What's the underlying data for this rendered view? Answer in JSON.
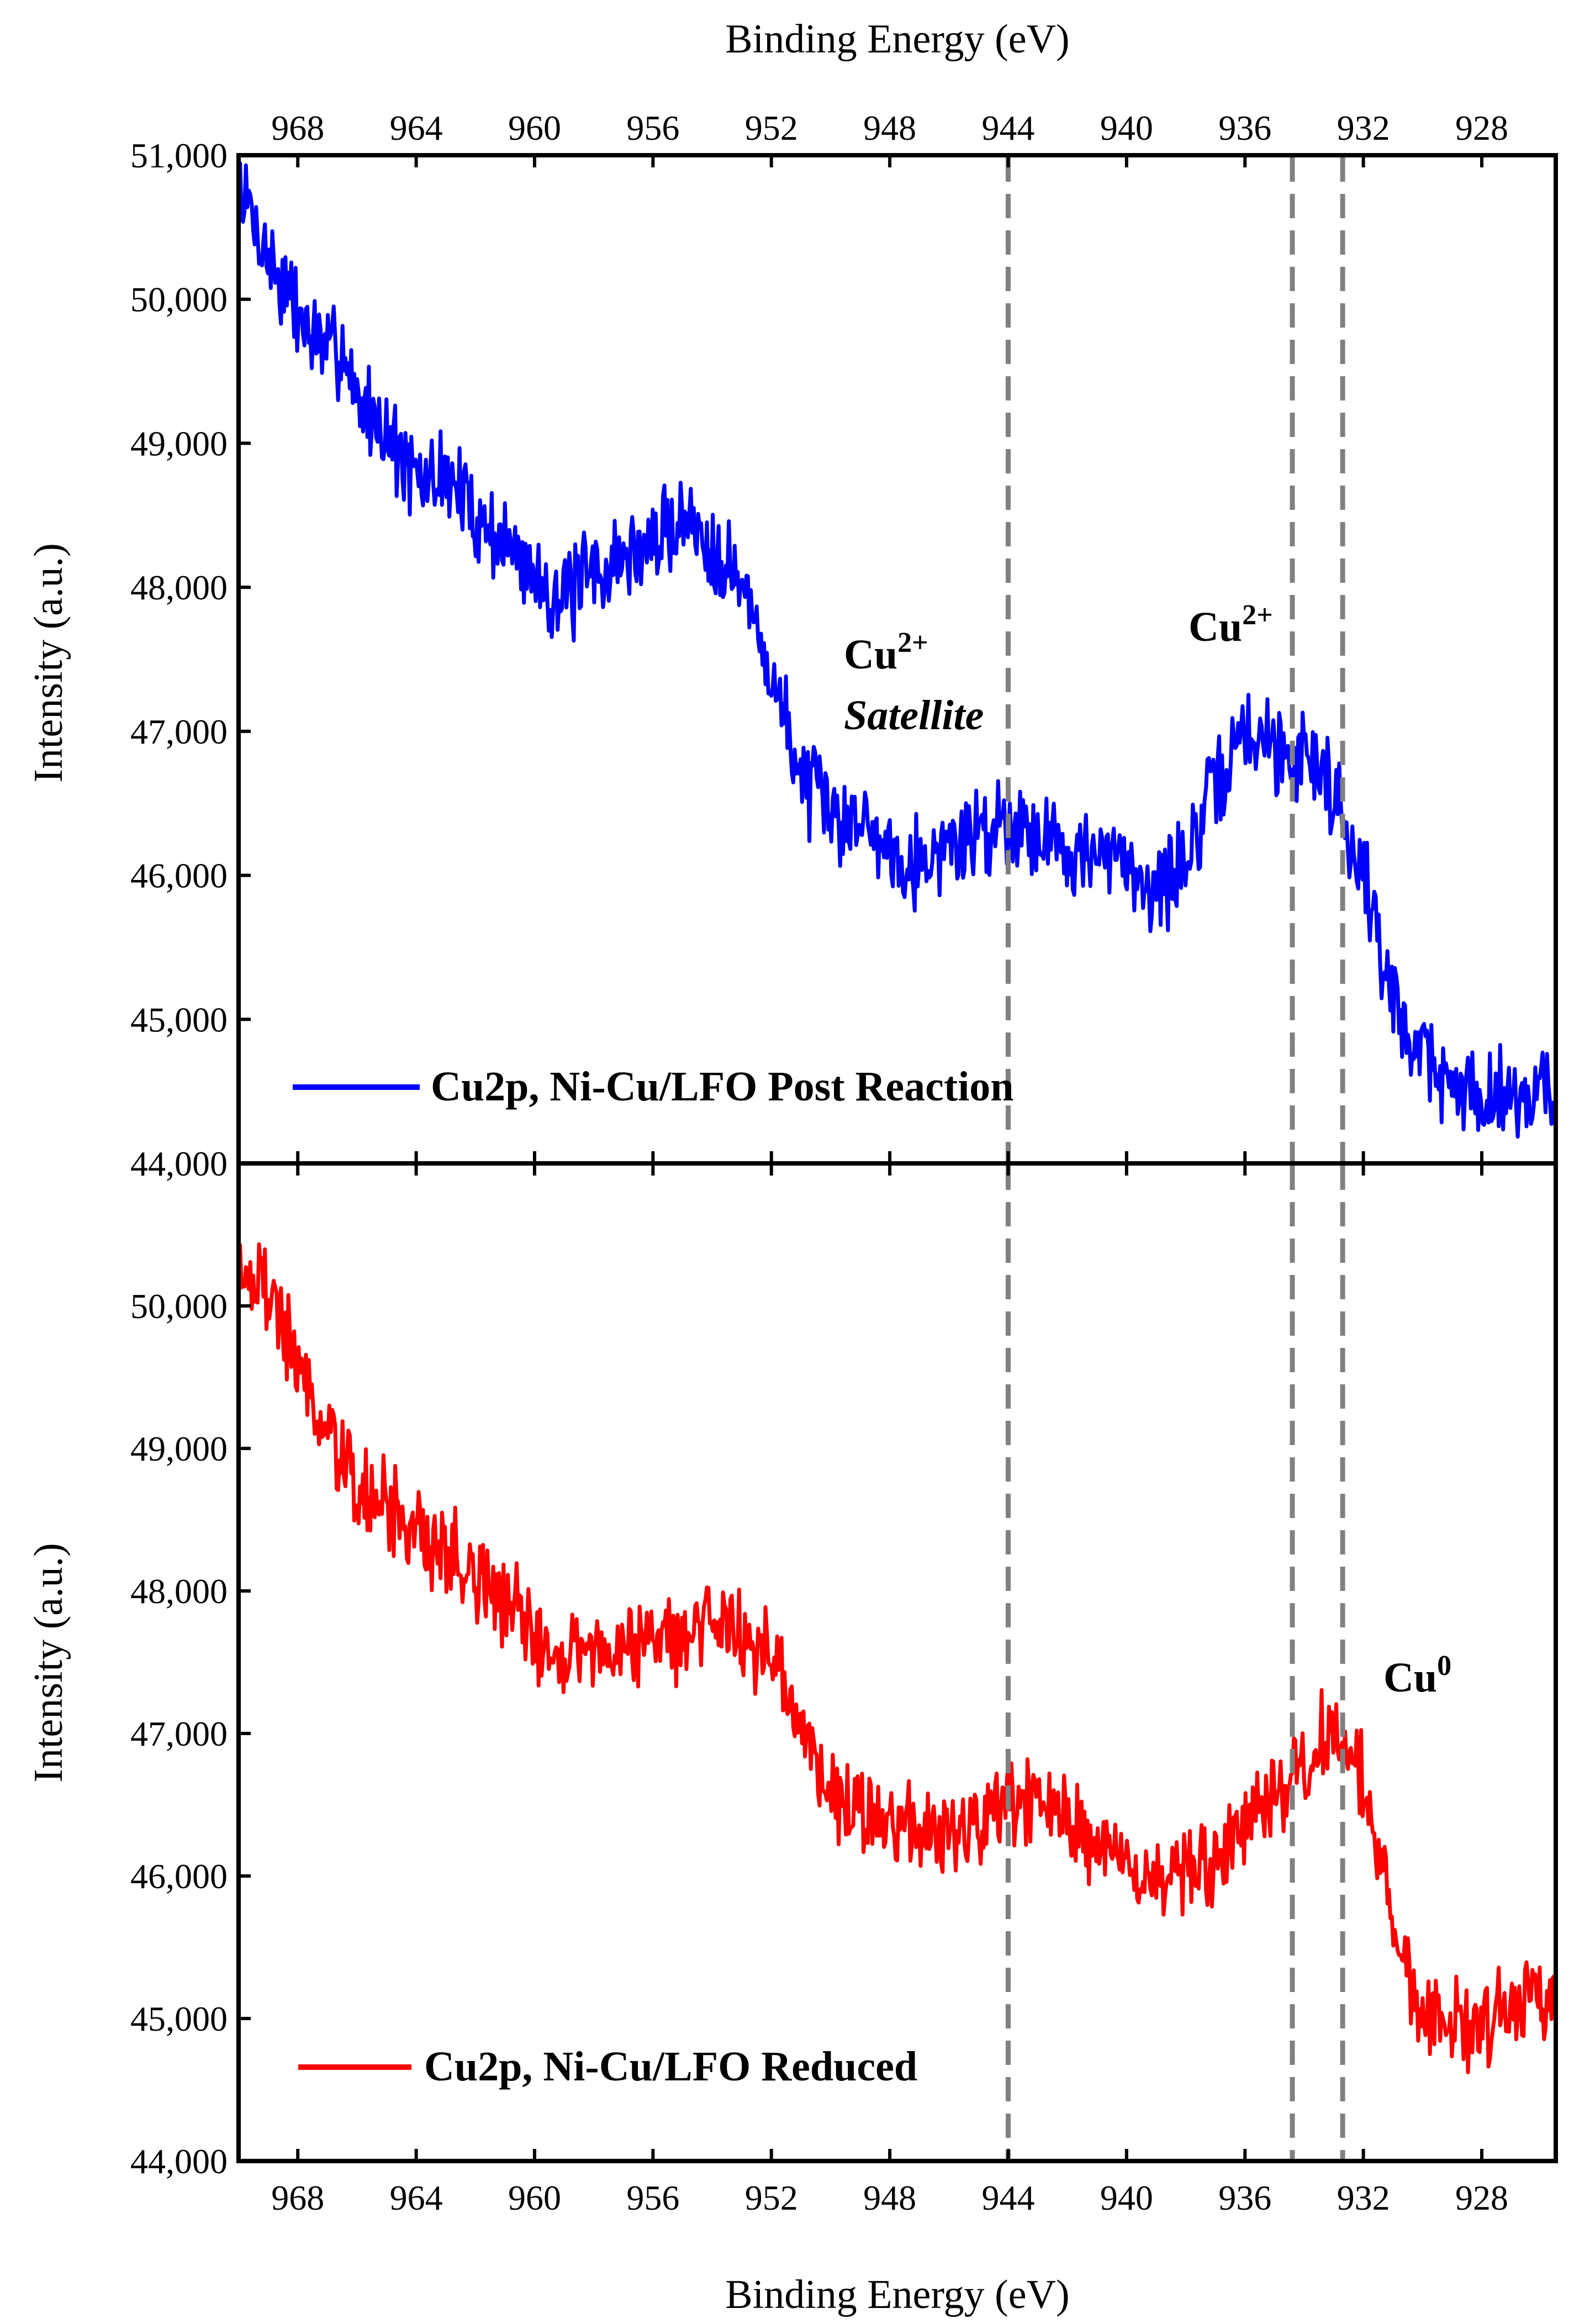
{
  "chart_data": [
    {
      "type": "line",
      "panel": "top",
      "xlabel": "Binding Energy (eV)",
      "ylabel": "Intensity (a.u.)",
      "xlim": [
        970.0,
        925.5
      ],
      "x_reversed": true,
      "ylim": [
        44000,
        51000
      ],
      "x_ticks": [
        968,
        964,
        960,
        956,
        952,
        948,
        944,
        940,
        936,
        932,
        928
      ],
      "x_tick_labels": [
        "968",
        "964",
        "960",
        "956",
        "952",
        "948",
        "944",
        "940",
        "936",
        "932",
        "928"
      ],
      "y_ticks": [
        44000,
        45000,
        46000,
        47000,
        48000,
        49000,
        50000,
        51000
      ],
      "y_tick_labels": [
        "44,000",
        "45,000",
        "46,000",
        "47,000",
        "48,000",
        "49,000",
        "50,000",
        "51,000"
      ],
      "legend_position": "bottom-left",
      "grid": false,
      "series": [
        {
          "name": "Cu2p, Ni-Cu/LFO Post Reaction",
          "color": "#0000ff",
          "x": [
            970.0,
            969.0,
            968.0,
            967.0,
            966.5,
            966.0,
            965.0,
            964.0,
            963.0,
            962.0,
            961.0,
            960.0,
            959.0,
            958.0,
            957.0,
            956.0,
            955.0,
            954.0,
            953.5,
            953.0,
            952.0,
            951.0,
            950.0,
            949.0,
            948.0,
            947.0,
            946.0,
            945.0,
            944.0,
            943.0,
            942.0,
            941.0,
            940.0,
            939.0,
            938.0,
            937.0,
            936.0,
            935.0,
            934.5,
            934.0,
            933.0,
            932.0,
            931.5,
            931.0,
            930.0,
            929.0,
            928.0,
            927.0,
            926.0,
            925.5
          ],
          "values": [
            50800,
            50300,
            49900,
            49600,
            49700,
            49300,
            49100,
            48700,
            48800,
            48500,
            48300,
            48100,
            47900,
            48100,
            48200,
            48300,
            48500,
            48300,
            48200,
            48000,
            47400,
            46700,
            46400,
            46400,
            46200,
            46100,
            46200,
            46300,
            46400,
            46300,
            46200,
            46100,
            46100,
            45900,
            46100,
            46600,
            47000,
            46900,
            46800,
            46900,
            46600,
            46000,
            45600,
            45100,
            44800,
            44500,
            44500,
            44500,
            44500,
            44500
          ]
        }
      ],
      "annotations": [
        {
          "text": "Cu",
          "sup": "2+",
          "line2": "Satellite"
        },
        {
          "text": "Cu",
          "sup": "2+"
        }
      ],
      "reference_lines_ev": [
        944.0,
        934.4,
        932.7
      ]
    },
    {
      "type": "line",
      "panel": "bottom",
      "xlabel": "Binding Energy (eV)",
      "ylabel": "Intensity (a.u.)",
      "xlim": [
        970.0,
        925.5
      ],
      "x_reversed": true,
      "ylim": [
        44000,
        51000
      ],
      "x_ticks": [
        968,
        964,
        960,
        956,
        952,
        948,
        944,
        940,
        936,
        932,
        928
      ],
      "x_tick_labels": [
        "968",
        "964",
        "960",
        "956",
        "952",
        "948",
        "944",
        "940",
        "936",
        "932",
        "928"
      ],
      "y_ticks": [
        44000,
        45000,
        46000,
        47000,
        48000,
        49000,
        50000
      ],
      "y_tick_labels": [
        "44,000",
        "45,000",
        "46,000",
        "47,000",
        "48,000",
        "49,000",
        "50,000"
      ],
      "legend_position": "bottom-left",
      "grid": false,
      "series": [
        {
          "name": "Cu2p, Ni-Cu/LFO Reduced",
          "color": "#ff0000",
          "x": [
            970.0,
            969.0,
            968.0,
            967.0,
            966.0,
            965.0,
            964.0,
            963.0,
            962.0,
            961.0,
            960.0,
            959.0,
            958.0,
            957.0,
            956.0,
            955.0,
            954.0,
            953.5,
            953.0,
            952.0,
            951.0,
            950.0,
            949.0,
            948.0,
            947.0,
            946.0,
            945.0,
            944.0,
            943.0,
            942.0,
            941.0,
            940.0,
            939.0,
            938.0,
            937.0,
            936.0,
            935.0,
            934.0,
            933.5,
            933.0,
            932.5,
            932.0,
            931.5,
            931.0,
            930.0,
            929.0,
            928.0,
            927.0,
            926.0,
            925.5
          ],
          "values": [
            50300,
            50100,
            49600,
            49100,
            48700,
            48600,
            48400,
            48300,
            48100,
            47900,
            47700,
            47600,
            47600,
            47600,
            47700,
            47700,
            47800,
            47800,
            47700,
            47500,
            47000,
            46600,
            46500,
            46300,
            46300,
            46300,
            46300,
            46500,
            46500,
            46400,
            46200,
            46100,
            46000,
            46000,
            46100,
            46300,
            46500,
            46700,
            46900,
            47000,
            46900,
            46700,
            46200,
            45600,
            45100,
            45000,
            45000,
            45100,
            45200,
            45100
          ]
        }
      ],
      "annotations": [
        {
          "text": "Cu",
          "sup": "0"
        }
      ],
      "reference_lines_ev": [
        944.0,
        934.4,
        932.7
      ]
    }
  ]
}
